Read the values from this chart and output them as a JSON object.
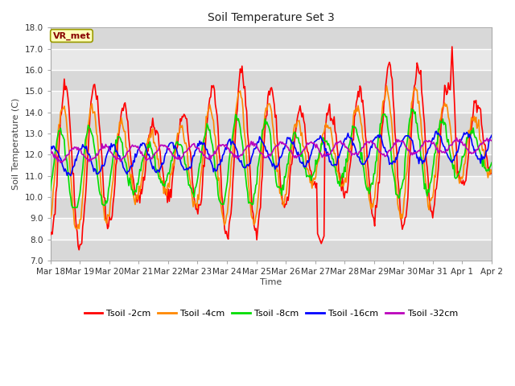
{
  "title": "Soil Temperature Set 3",
  "xlabel": "Time",
  "ylabel": "Soil Temperature (C)",
  "ylim": [
    7.0,
    18.0
  ],
  "yticks": [
    7.0,
    8.0,
    9.0,
    10.0,
    11.0,
    12.0,
    13.0,
    14.0,
    15.0,
    16.0,
    17.0,
    18.0
  ],
  "bg_color": "#ffffff",
  "plot_bg_color": "#e8e8e8",
  "grid_color": "#ffffff",
  "series_colors": [
    "#ff0000",
    "#ff8800",
    "#00dd00",
    "#0000ff",
    "#bb00bb"
  ],
  "series_labels": [
    "Tsoil -2cm",
    "Tsoil -4cm",
    "Tsoil -8cm",
    "Tsoil -16cm",
    "Tsoil -32cm"
  ],
  "annotation_text": "VR_met",
  "annotation_box_color": "#ffffbb",
  "annotation_border_color": "#999900",
  "xtick_labels": [
    "Mar 18",
    "Mar 19",
    "Mar 20",
    "Mar 21",
    "Mar 22",
    "Mar 23",
    "Mar 24",
    "Mar 25",
    "Mar 26",
    "Mar 27",
    "Mar 28",
    "Mar 29",
    "Mar 30",
    "Mar 31",
    "Apr 1",
    "Apr 2"
  ],
  "n_points": 480,
  "days": 15,
  "seed": 77
}
